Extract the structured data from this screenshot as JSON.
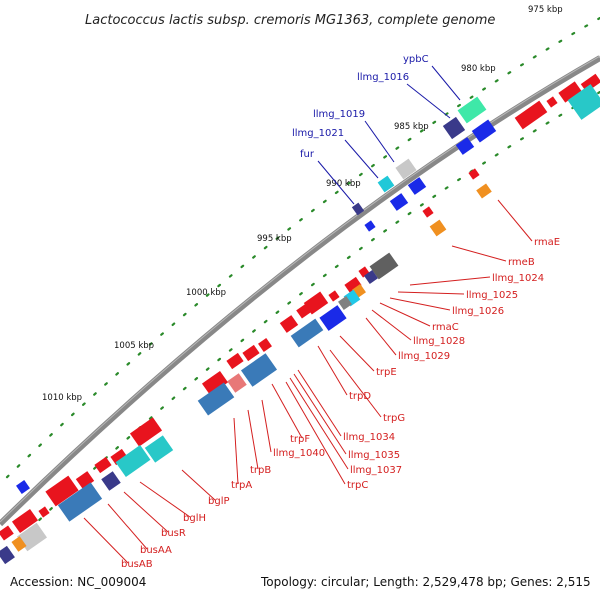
{
  "title": "Lactococcus lactis subsp. cremoris MG1363, complete genome",
  "footer": {
    "accession": "Accession: NC_009004",
    "summary": "Topology: circular; Length: 2,529,478 bp; Genes: 2,515"
  },
  "colors": {
    "backbone": "#888888",
    "tick": "#2a8a2a",
    "plus_label": "#1a1aa8",
    "minus_label": "#d42020",
    "cds_red": "#e8141e",
    "cds_blue": "#1a2ae8"
  },
  "ticks": [
    {
      "label": "975 kbp"
    },
    {
      "label": "980 kbp"
    },
    {
      "label": "985 kbp"
    },
    {
      "label": "990 kbp"
    },
    {
      "label": "995 kbp"
    },
    {
      "label": "1000 kbp"
    },
    {
      "label": "1005 kbp"
    },
    {
      "label": "1010 kbp"
    }
  ],
  "gene_labels_plus": [
    {
      "text": "ypbC"
    },
    {
      "text": "llmg_1016"
    },
    {
      "text": "llmg_1019"
    },
    {
      "text": "llmg_1021"
    },
    {
      "text": "fur"
    }
  ],
  "gene_labels_minus": [
    {
      "text": "rmaE"
    },
    {
      "text": "rmeB"
    },
    {
      "text": "llmg_1024"
    },
    {
      "text": "llmg_1025"
    },
    {
      "text": "llmg_1026"
    },
    {
      "text": "rmaC"
    },
    {
      "text": "llmg_1028"
    },
    {
      "text": "llmg_1029"
    },
    {
      "text": "trpE"
    },
    {
      "text": "trpD"
    },
    {
      "text": "trpG"
    },
    {
      "text": "llmg_1034"
    },
    {
      "text": "llmg_1035"
    },
    {
      "text": "llmg_1037"
    },
    {
      "text": "trpC"
    },
    {
      "text": "llmg_1040"
    },
    {
      "text": "trpF"
    },
    {
      "text": "trpB"
    },
    {
      "text": "trpA"
    },
    {
      "text": "bglP"
    },
    {
      "text": "bglH"
    },
    {
      "text": "busR"
    },
    {
      "text": "busAA"
    },
    {
      "text": "busAB"
    }
  ]
}
